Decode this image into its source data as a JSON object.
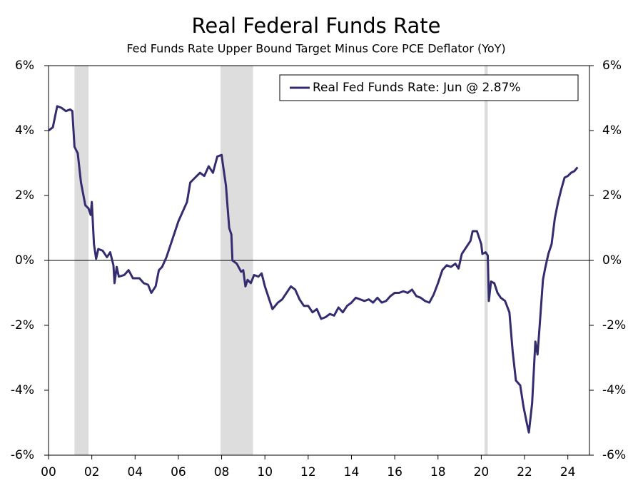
{
  "chart_data": {
    "type": "line",
    "title": "Real Federal Funds Rate",
    "subtitle": "Fed Funds Rate Upper Bound Target Minus Core PCE Deflator (YoY)",
    "x": [
      2000.0,
      2000.2,
      2000.4,
      2000.6,
      2000.8,
      2001.0,
      2001.1,
      2001.2,
      2001.35,
      2001.5,
      2001.7,
      2001.85,
      2001.95,
      2002.0,
      2002.1,
      2002.2,
      2002.3,
      2002.5,
      2002.7,
      2002.85,
      2003.0,
      2003.05,
      2003.15,
      2003.25,
      2003.5,
      2003.7,
      2003.9,
      2004.2,
      2004.4,
      2004.6,
      2004.75,
      2004.95,
      2005.1,
      2005.25,
      2005.45,
      2005.6,
      2005.8,
      2006.0,
      2006.2,
      2006.4,
      2006.55,
      2006.7,
      2006.85,
      2007.0,
      2007.2,
      2007.4,
      2007.6,
      2007.8,
      2008.0,
      2008.05,
      2008.2,
      2008.35,
      2008.45,
      2008.5,
      2008.7,
      2008.9,
      2009.0,
      2009.1,
      2009.2,
      2009.35,
      2009.5,
      2009.7,
      2009.85,
      2010.0,
      2010.2,
      2010.35,
      2010.6,
      2010.8,
      2011.0,
      2011.2,
      2011.4,
      2011.6,
      2011.8,
      2012.0,
      2012.2,
      2012.4,
      2012.6,
      2012.8,
      2013.0,
      2013.2,
      2013.4,
      2013.6,
      2013.8,
      2014.0,
      2014.2,
      2014.4,
      2014.6,
      2014.8,
      2015.0,
      2015.2,
      2015.4,
      2015.6,
      2015.8,
      2016.0,
      2016.2,
      2016.4,
      2016.6,
      2016.8,
      2017.0,
      2017.2,
      2017.4,
      2017.6,
      2017.8,
      2018.0,
      2018.2,
      2018.4,
      2018.6,
      2018.8,
      2018.95,
      2019.1,
      2019.3,
      2019.5,
      2019.6,
      2019.8,
      2020.0,
      2020.05,
      2020.2,
      2020.3,
      2020.35,
      2020.45,
      2020.6,
      2020.75,
      2020.9,
      2021.1,
      2021.3,
      2021.45,
      2021.6,
      2021.8,
      2021.95,
      2022.1,
      2022.2,
      2022.35,
      2022.5,
      2022.6,
      2022.7,
      2022.85,
      2022.95,
      2023.1,
      2023.25,
      2023.4,
      2023.55,
      2023.7,
      2023.85,
      2024.0,
      2024.15,
      2024.3,
      2024.45
    ],
    "series": [
      {
        "name": "Real Fed Funds Rate: Jun @ 2.87%",
        "color": "#332c6e",
        "values": [
          4.0,
          4.1,
          4.75,
          4.7,
          4.6,
          4.65,
          4.6,
          3.5,
          3.3,
          2.4,
          1.7,
          1.6,
          1.4,
          1.8,
          0.5,
          0.05,
          0.35,
          0.3,
          0.1,
          0.25,
          -0.15,
          -0.7,
          -0.2,
          -0.5,
          -0.45,
          -0.3,
          -0.55,
          -0.55,
          -0.7,
          -0.75,
          -1.0,
          -0.8,
          -0.3,
          -0.2,
          0.1,
          0.4,
          0.8,
          1.2,
          1.5,
          1.8,
          2.4,
          2.5,
          2.6,
          2.7,
          2.6,
          2.9,
          2.7,
          3.2,
          3.25,
          3.0,
          2.3,
          1.0,
          0.8,
          0.0,
          -0.1,
          -0.35,
          -0.3,
          -0.8,
          -0.6,
          -0.7,
          -0.45,
          -0.5,
          -0.4,
          -0.8,
          -1.2,
          -1.5,
          -1.3,
          -1.2,
          -1.0,
          -0.8,
          -0.9,
          -1.2,
          -1.4,
          -1.4,
          -1.6,
          -1.5,
          -1.8,
          -1.75,
          -1.65,
          -1.7,
          -1.45,
          -1.6,
          -1.4,
          -1.3,
          -1.15,
          -1.2,
          -1.25,
          -1.2,
          -1.3,
          -1.15,
          -1.3,
          -1.25,
          -1.1,
          -1.0,
          -1.0,
          -0.95,
          -1.0,
          -0.9,
          -1.1,
          -1.15,
          -1.25,
          -1.3,
          -1.05,
          -0.7,
          -0.3,
          -0.15,
          -0.2,
          -0.1,
          -0.25,
          0.2,
          0.4,
          0.6,
          0.9,
          0.9,
          0.5,
          0.2,
          0.25,
          0.15,
          -1.25,
          -0.65,
          -0.7,
          -1.0,
          -1.15,
          -1.25,
          -1.6,
          -2.8,
          -3.7,
          -3.85,
          -4.5,
          -5.0,
          -5.3,
          -4.4,
          -2.5,
          -2.9,
          -2.0,
          -0.6,
          -0.25,
          0.2,
          0.5,
          1.3,
          1.8,
          2.2,
          2.55,
          2.6,
          2.7,
          2.75,
          2.87
        ]
      }
    ],
    "recessions": [
      [
        2001.2,
        2001.85
      ],
      [
        2007.95,
        2009.45
      ],
      [
        2020.15,
        2020.3
      ]
    ],
    "recession_color": "#dddddd",
    "xlim": [
      2000,
      2025
    ],
    "xticks": [
      {
        "value": 2000,
        "label": "00"
      },
      {
        "value": 2002,
        "label": "02"
      },
      {
        "value": 2004,
        "label": "04"
      },
      {
        "value": 2006,
        "label": "06"
      },
      {
        "value": 2008,
        "label": "08"
      },
      {
        "value": 2010,
        "label": "10"
      },
      {
        "value": 2012,
        "label": "12"
      },
      {
        "value": 2014,
        "label": "14"
      },
      {
        "value": 2016,
        "label": "16"
      },
      {
        "value": 2018,
        "label": "18"
      },
      {
        "value": 2020,
        "label": "20"
      },
      {
        "value": 2022,
        "label": "22"
      },
      {
        "value": 2024,
        "label": "24"
      }
    ],
    "ylim": [
      -6,
      6
    ],
    "yticks": [
      {
        "value": -6,
        "label": "-6%"
      },
      {
        "value": -4,
        "label": "-4%"
      },
      {
        "value": -2,
        "label": "-2%"
      },
      {
        "value": 0,
        "label": "0%"
      },
      {
        "value": 2,
        "label": "2%"
      },
      {
        "value": 4,
        "label": "4%"
      },
      {
        "value": 6,
        "label": "6%"
      }
    ],
    "y2lim": [
      -6,
      6
    ],
    "y2ticks": [
      {
        "value": -6,
        "label": "-6%"
      },
      {
        "value": -4,
        "label": "-4%"
      },
      {
        "value": -2,
        "label": "-2%"
      },
      {
        "value": 0,
        "label": "0%"
      },
      {
        "value": 2,
        "label": "2%"
      },
      {
        "value": 4,
        "label": "4%"
      },
      {
        "value": 6,
        "label": "6%"
      }
    ],
    "zero_line": true,
    "legend": "upper right"
  }
}
